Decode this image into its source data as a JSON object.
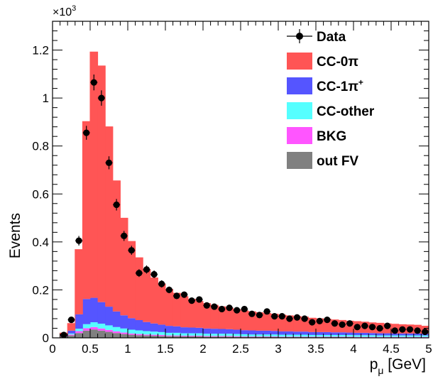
{
  "chart_data": {
    "type": "bar",
    "stacked": true,
    "xlabel_main": "p",
    "xlabel_sub": "μ",
    "xlabel_unit": " [GeV]",
    "ylabel": "Events",
    "y_multiplier_base": "×10",
    "y_multiplier_exp": "3",
    "xlim": [
      0,
      5
    ],
    "ylim": [
      0,
      1.32
    ],
    "x_ticks": [
      "0",
      "0.5",
      "1",
      "1.5",
      "2",
      "2.5",
      "3",
      "3.5",
      "4",
      "4.5",
      "5"
    ],
    "y_ticks": [
      "0",
      "0.2",
      "0.4",
      "0.6",
      "0.8",
      "1",
      "1.2"
    ],
    "legend_position": "top-right",
    "bin_edges": [
      0.1,
      0.2,
      0.3,
      0.4,
      0.5,
      0.6,
      0.7,
      0.8,
      0.9,
      1.0,
      1.1,
      1.2,
      1.3,
      1.4,
      1.5,
      1.6,
      1.7,
      1.8,
      1.9,
      2.0,
      2.1,
      2.2,
      2.3,
      2.4,
      2.5,
      2.6,
      2.7,
      2.8,
      2.9,
      3.0,
      3.1,
      3.2,
      3.3,
      3.4,
      3.5,
      3.6,
      3.7,
      3.8,
      3.9,
      4.0,
      4.1,
      4.2,
      4.3,
      4.4,
      4.5,
      4.6,
      4.7,
      4.8,
      4.9,
      5.0
    ],
    "series": [
      {
        "name": "out FV",
        "color": "#808080",
        "values": [
          0.005,
          0.01,
          0.02,
          0.03,
          0.035,
          0.03,
          0.025,
          0.02,
          0.016,
          0.013,
          0.011,
          0.01,
          0.009,
          0.008,
          0.007,
          0.007,
          0.006,
          0.006,
          0.006,
          0.005,
          0.005,
          0.005,
          0.005,
          0.004,
          0.004,
          0.004,
          0.004,
          0.004,
          0.004,
          0.003,
          0.003,
          0.003,
          0.003,
          0.003,
          0.003,
          0.003,
          0.003,
          0.003,
          0.003,
          0.002,
          0.002,
          0.002,
          0.002,
          0.002,
          0.002,
          0.002,
          0.002,
          0.002,
          0.002
        ]
      },
      {
        "name": "BKG",
        "color": "#ff55ff",
        "values": [
          0.002,
          0.004,
          0.008,
          0.01,
          0.01,
          0.009,
          0.008,
          0.007,
          0.006,
          0.005,
          0.005,
          0.004,
          0.004,
          0.004,
          0.003,
          0.003,
          0.003,
          0.003,
          0.003,
          0.003,
          0.003,
          0.003,
          0.003,
          0.003,
          0.002,
          0.002,
          0.002,
          0.002,
          0.002,
          0.002,
          0.002,
          0.002,
          0.002,
          0.002,
          0.002,
          0.002,
          0.002,
          0.002,
          0.002,
          0.002,
          0.002,
          0.002,
          0.002,
          0.002,
          0.002,
          0.002,
          0.002,
          0.002,
          0.002
        ]
      },
      {
        "name": "CC-other",
        "color": "#55ffff",
        "values": [
          0.001,
          0.004,
          0.01,
          0.017,
          0.02,
          0.02,
          0.019,
          0.018,
          0.017,
          0.016,
          0.015,
          0.014,
          0.013,
          0.012,
          0.011,
          0.011,
          0.01,
          0.01,
          0.01,
          0.009,
          0.009,
          0.009,
          0.009,
          0.009,
          0.009,
          0.008,
          0.008,
          0.008,
          0.008,
          0.008,
          0.008,
          0.008,
          0.008,
          0.007,
          0.007,
          0.007,
          0.007,
          0.007,
          0.007,
          0.007,
          0.007,
          0.007,
          0.006,
          0.006,
          0.006,
          0.006,
          0.006,
          0.006,
          0.006
        ]
      },
      {
        "name": "CC-1π⁺",
        "color": "#5555ff",
        "values": [
          0.002,
          0.012,
          0.06,
          0.105,
          0.102,
          0.09,
          0.078,
          0.065,
          0.055,
          0.048,
          0.043,
          0.038,
          0.034,
          0.031,
          0.029,
          0.027,
          0.025,
          0.024,
          0.023,
          0.022,
          0.021,
          0.02,
          0.019,
          0.018,
          0.017,
          0.017,
          0.016,
          0.016,
          0.015,
          0.014,
          0.014,
          0.013,
          0.013,
          0.012,
          0.012,
          0.012,
          0.011,
          0.011,
          0.01,
          0.01,
          0.01,
          0.009,
          0.009,
          0.009,
          0.008,
          0.008,
          0.008,
          0.008,
          0.007
        ]
      },
      {
        "name": "CC-0π",
        "color": "#ff5555",
        "values": [
          0.01,
          0.03,
          0.27,
          0.74,
          1.025,
          0.985,
          0.75,
          0.545,
          0.405,
          0.32,
          0.26,
          0.218,
          0.19,
          0.17,
          0.152,
          0.138,
          0.128,
          0.118,
          0.11,
          0.104,
          0.098,
          0.093,
          0.088,
          0.084,
          0.081,
          0.078,
          0.075,
          0.072,
          0.07,
          0.068,
          0.065,
          0.063,
          0.061,
          0.058,
          0.056,
          0.054,
          0.052,
          0.05,
          0.048,
          0.047,
          0.045,
          0.043,
          0.042,
          0.04,
          0.039,
          0.037,
          0.036,
          0.035,
          0.032
        ]
      }
    ],
    "data": {
      "name": "Data",
      "x": [
        0.15,
        0.25,
        0.35,
        0.45,
        0.55,
        0.65,
        0.75,
        0.85,
        0.95,
        1.05,
        1.15,
        1.25,
        1.35,
        1.45,
        1.55,
        1.65,
        1.75,
        1.85,
        1.95,
        2.05,
        2.15,
        2.25,
        2.35,
        2.45,
        2.55,
        2.65,
        2.75,
        2.85,
        2.95,
        3.05,
        3.15,
        3.25,
        3.35,
        3.45,
        3.55,
        3.65,
        3.75,
        3.85,
        3.95,
        4.05,
        4.15,
        4.25,
        4.35,
        4.45,
        4.55,
        4.65,
        4.75,
        4.85,
        4.95
      ],
      "y": [
        0.012,
        0.075,
        0.405,
        0.855,
        1.065,
        1.0,
        0.73,
        0.555,
        0.425,
        0.365,
        0.27,
        0.285,
        0.265,
        0.225,
        0.2,
        0.175,
        0.18,
        0.155,
        0.16,
        0.135,
        0.13,
        0.12,
        0.125,
        0.115,
        0.12,
        0.1,
        0.095,
        0.11,
        0.09,
        0.09,
        0.08,
        0.085,
        0.08,
        0.065,
        0.07,
        0.075,
        0.06,
        0.055,
        0.06,
        0.045,
        0.05,
        0.045,
        0.04,
        0.05,
        0.03,
        0.035,
        0.035,
        0.03,
        0.025
      ],
      "yerr": [
        0.004,
        0.009,
        0.02,
        0.029,
        0.033,
        0.032,
        0.027,
        0.024,
        0.021,
        0.019,
        0.016,
        0.017,
        0.016,
        0.015,
        0.014,
        0.013,
        0.013,
        0.012,
        0.013,
        0.012,
        0.011,
        0.011,
        0.011,
        0.011,
        0.011,
        0.01,
        0.01,
        0.01,
        0.009,
        0.009,
        0.009,
        0.009,
        0.009,
        0.008,
        0.008,
        0.009,
        0.008,
        0.007,
        0.008,
        0.007,
        0.007,
        0.007,
        0.006,
        0.007,
        0.005,
        0.006,
        0.006,
        0.005,
        0.005
      ]
    },
    "legend": [
      {
        "label_main": "Data",
        "label_sup": "",
        "marker": "data",
        "color": "#000000"
      },
      {
        "label_main": "CC-0π",
        "label_sup": "",
        "marker": "box",
        "color": "#ff5555"
      },
      {
        "label_main": "CC-1π",
        "label_sup": "+",
        "marker": "box",
        "color": "#5555ff"
      },
      {
        "label_main": "CC-other",
        "label_sup": "",
        "marker": "box",
        "color": "#55ffff"
      },
      {
        "label_main": "BKG",
        "label_sup": "",
        "marker": "box",
        "color": "#ff55ff"
      },
      {
        "label_main": "out FV",
        "label_sup": "",
        "marker": "box",
        "color": "#808080"
      }
    ]
  }
}
